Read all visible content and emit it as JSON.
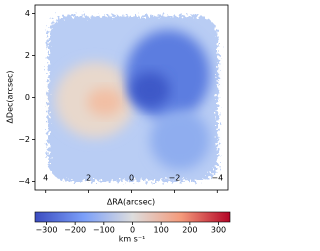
{
  "chart_data": {
    "type": "image",
    "xlabel": "ΔRA(arcsec)",
    "ylabel": "ΔDec(arcsec)",
    "xlim": [
      4.5,
      -4.5
    ],
    "ylim": [
      -4.4,
      4.4
    ],
    "xticks": [
      4,
      2,
      0,
      {
        "value": -2,
        "label": "−2"
      },
      {
        "value": -4,
        "label": "−4"
      }
    ],
    "yticks": [
      {
        "value": -4,
        "label": "−4"
      },
      {
        "value": -2,
        "label": "−2"
      },
      0,
      2,
      4
    ],
    "colormap": "coolwarm",
    "colorbar": {
      "label": "km s⁻¹",
      "lim": [
        -340,
        340
      ],
      "ticks": [
        {
          "value": -300,
          "label": "−300"
        },
        {
          "value": -200,
          "label": "−200"
        },
        {
          "value": -100,
          "label": "−100"
        },
        0,
        100,
        200,
        300
      ]
    }
  }
}
